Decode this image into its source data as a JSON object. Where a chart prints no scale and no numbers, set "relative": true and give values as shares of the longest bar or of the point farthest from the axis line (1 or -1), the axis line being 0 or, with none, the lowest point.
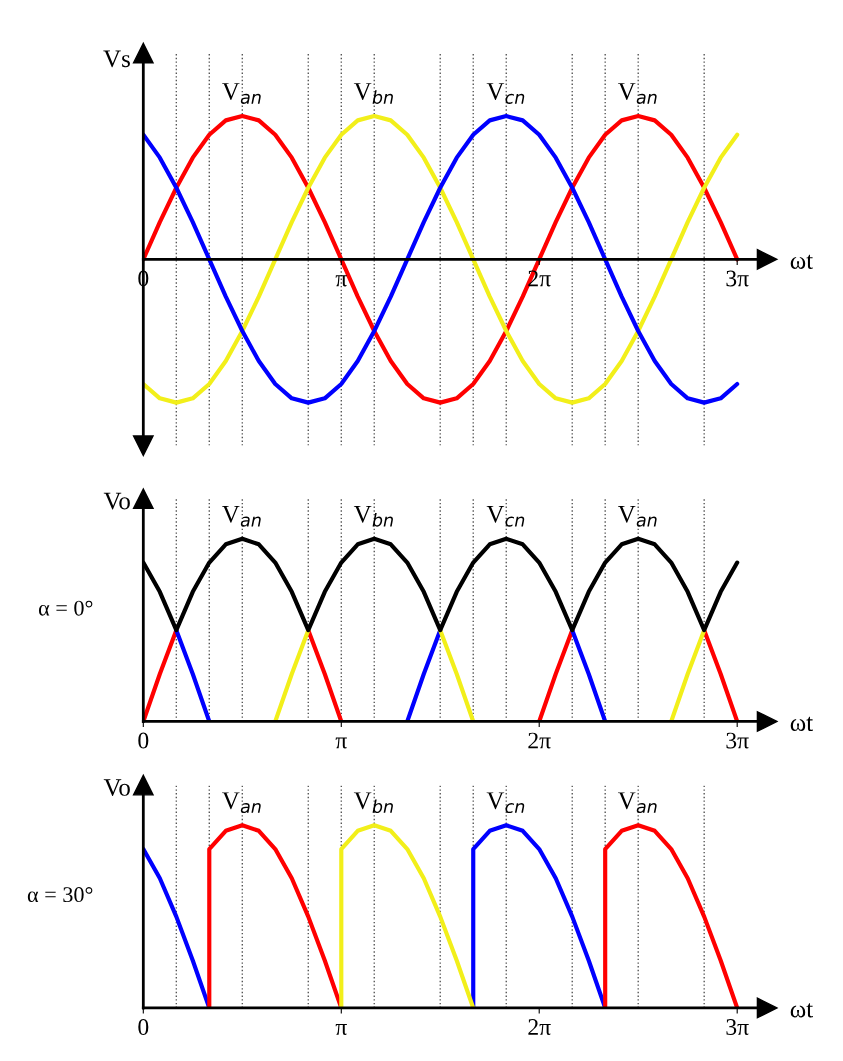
{
  "chart_data": [
    {
      "type": "line",
      "ylabel": "Vs",
      "xlabel": "ωt",
      "relative": true,
      "tick_labels": "x",
      "x": [
        0,
        0.262,
        0.524,
        0.785,
        1.047,
        1.309,
        1.571,
        1.833,
        2.094,
        2.356,
        2.618,
        2.88,
        3.142,
        3.403,
        3.665,
        3.927,
        4.189,
        4.451,
        4.712,
        4.974,
        5.236,
        5.498,
        5.76,
        6.021,
        6.283,
        6.545,
        6.807,
        7.069,
        7.33,
        7.592,
        7.854,
        8.116,
        8.378,
        8.639,
        8.901,
        9.163,
        9.425
      ],
      "series": [
        {
          "color": "#ff0000",
          "values": [
            0,
            0.26,
            0.5,
            0.71,
            0.87,
            0.97,
            1,
            0.97,
            0.87,
            0.71,
            0.5,
            0.26,
            0,
            -0.26,
            -0.5,
            -0.71,
            -0.87,
            -0.97,
            -1,
            -0.97,
            -0.87,
            -0.71,
            -0.5,
            -0.26,
            0,
            0.26,
            0.5,
            0.71,
            0.87,
            0.97,
            1,
            0.97,
            0.87,
            0.71,
            0.5,
            0.26,
            0
          ]
        },
        {
          "color": "#f2ef1a",
          "values": [
            -0.87,
            -0.97,
            -1,
            -0.97,
            -0.87,
            -0.71,
            -0.5,
            -0.26,
            0,
            0.26,
            0.5,
            0.71,
            0.87,
            0.97,
            1,
            0.97,
            0.87,
            0.71,
            0.5,
            0.26,
            0,
            -0.26,
            -0.5,
            -0.71,
            -0.87,
            -0.97,
            -1,
            -0.97,
            -0.87,
            -0.71,
            -0.5,
            -0.26,
            0,
            0.26,
            0.5,
            0.71,
            0.87
          ]
        },
        {
          "color": "#0000ff",
          "values": [
            0.87,
            0.71,
            0.5,
            0.26,
            0,
            -0.26,
            -0.5,
            -0.71,
            -0.87,
            -0.97,
            -1,
            -0.97,
            -0.87,
            -0.71,
            -0.5,
            -0.26,
            0,
            0.26,
            0.5,
            0.71,
            0.87,
            0.97,
            1,
            0.97,
            0.87,
            0.71,
            0.5,
            0.26,
            0,
            -0.26,
            -0.5,
            -0.71,
            -0.87,
            -0.97,
            -1,
            -0.97,
            -0.87
          ]
        }
      ],
      "xlim": [
        0,
        9.9
      ],
      "xticks": [
        {
          "value": 0,
          "label": "0"
        },
        {
          "value": 3.142,
          "label": "π"
        },
        {
          "value": 6.283,
          "label": "2π"
        },
        {
          "value": 9.425,
          "label": "3π"
        }
      ],
      "ref_lines": [
        {
          "axis": "x",
          "value": 0.524,
          "color": "#555555",
          "line_style": "dotted"
        },
        {
          "axis": "x",
          "value": 1.047,
          "color": "#555555",
          "line_style": "dotted"
        },
        {
          "axis": "x",
          "value": 1.571,
          "color": "#555555",
          "line_style": "dotted"
        },
        {
          "axis": "x",
          "value": 2.618,
          "color": "#555555",
          "line_style": "dotted"
        },
        {
          "axis": "x",
          "value": 3.142,
          "color": "#555555",
          "line_style": "dotted"
        },
        {
          "axis": "x",
          "value": 3.665,
          "color": "#555555",
          "line_style": "dotted"
        },
        {
          "axis": "x",
          "value": 4.712,
          "color": "#555555",
          "line_style": "dotted"
        },
        {
          "axis": "x",
          "value": 5.236,
          "color": "#555555",
          "line_style": "dotted"
        },
        {
          "axis": "x",
          "value": 5.76,
          "color": "#555555",
          "line_style": "dotted"
        },
        {
          "axis": "x",
          "value": 6.807,
          "color": "#555555",
          "line_style": "dotted"
        },
        {
          "axis": "x",
          "value": 7.33,
          "color": "#555555",
          "line_style": "dotted"
        },
        {
          "axis": "x",
          "value": 7.854,
          "color": "#555555",
          "line_style": "dotted"
        },
        {
          "axis": "x",
          "value": 8.901,
          "color": "#555555",
          "line_style": "dotted"
        }
      ],
      "annotations": [
        {
          "text": "V$_{an}$",
          "x": 1.571,
          "y": 1
        },
        {
          "text": "V$_{bn}$",
          "x": 3.665,
          "y": 1
        },
        {
          "text": "V$_{cn}$",
          "x": 5.76,
          "y": 1
        },
        {
          "text": "V$_{an}$",
          "x": 7.854,
          "y": 1
        }
      ]
    },
    {
      "type": "line",
      "ylabel": "Vo",
      "xlabel": "ωt",
      "relative": true,
      "tick_labels": "x",
      "x": [
        0,
        0.262,
        0.524,
        0.785,
        1.047,
        1.309,
        1.571,
        1.833,
        2.094,
        2.356,
        2.618,
        2.88,
        3.142,
        3.403,
        3.665,
        3.927,
        4.189,
        4.451,
        4.712,
        4.974,
        5.236,
        5.498,
        5.76,
        6.021,
        6.283,
        6.545,
        6.807,
        7.069,
        7.33,
        7.592,
        7.854,
        8.116,
        8.378,
        8.639,
        8.901,
        9.163,
        9.425
      ],
      "series": [
        {
          "color": "#ff0000",
          "values": [
            0,
            0.26,
            0.5,
            null,
            null,
            null,
            null,
            null,
            null,
            null,
            0.5,
            0.26,
            0,
            null,
            null,
            null,
            null,
            null,
            null,
            null,
            null,
            null,
            null,
            null,
            0,
            0.26,
            0.5,
            null,
            null,
            null,
            null,
            null,
            null,
            null,
            0.5,
            0.26,
            0
          ]
        },
        {
          "color": "#0000ff",
          "values": [
            null,
            null,
            0.5,
            0.26,
            0,
            null,
            null,
            null,
            null,
            null,
            null,
            null,
            null,
            null,
            null,
            null,
            0,
            0.26,
            0.5,
            null,
            null,
            null,
            null,
            null,
            null,
            null,
            0.5,
            0.26,
            0,
            null,
            null,
            null,
            null,
            null,
            null,
            null,
            null
          ]
        },
        {
          "color": "#f2ef1a",
          "values": [
            null,
            null,
            null,
            null,
            null,
            null,
            null,
            null,
            0,
            0.26,
            0.5,
            null,
            null,
            null,
            null,
            null,
            null,
            null,
            0.5,
            0.26,
            0,
            null,
            null,
            null,
            null,
            null,
            null,
            null,
            null,
            null,
            null,
            null,
            0,
            0.26,
            0.5,
            null,
            null
          ]
        },
        {
          "color": "#000000",
          "values": [
            0.87,
            0.71,
            0.5,
            0.71,
            0.87,
            0.97,
            1,
            0.97,
            0.87,
            0.71,
            0.5,
            0.71,
            0.87,
            0.97,
            1,
            0.97,
            0.87,
            0.71,
            0.5,
            0.71,
            0.87,
            0.97,
            1,
            0.97,
            0.87,
            0.71,
            0.5,
            0.71,
            0.87,
            0.97,
            1,
            0.97,
            0.87,
            0.71,
            0.5,
            0.71,
            0.87
          ]
        }
      ],
      "xlim": [
        0,
        9.9
      ],
      "xticks": [
        {
          "value": 0,
          "label": "0"
        },
        {
          "value": 3.142,
          "label": "π"
        },
        {
          "value": 6.283,
          "label": "2π"
        },
        {
          "value": 9.425,
          "label": "3π"
        }
      ],
      "ref_lines": [
        {
          "axis": "x",
          "value": 0.524,
          "color": "#555555",
          "line_style": "dotted"
        },
        {
          "axis": "x",
          "value": 1.047,
          "color": "#555555",
          "line_style": "dotted"
        },
        {
          "axis": "x",
          "value": 1.571,
          "color": "#555555",
          "line_style": "dotted"
        },
        {
          "axis": "x",
          "value": 2.618,
          "color": "#555555",
          "line_style": "dotted"
        },
        {
          "axis": "x",
          "value": 3.142,
          "color": "#555555",
          "line_style": "dotted"
        },
        {
          "axis": "x",
          "value": 3.665,
          "color": "#555555",
          "line_style": "dotted"
        },
        {
          "axis": "x",
          "value": 4.712,
          "color": "#555555",
          "line_style": "dotted"
        },
        {
          "axis": "x",
          "value": 5.236,
          "color": "#555555",
          "line_style": "dotted"
        },
        {
          "axis": "x",
          "value": 5.76,
          "color": "#555555",
          "line_style": "dotted"
        },
        {
          "axis": "x",
          "value": 6.807,
          "color": "#555555",
          "line_style": "dotted"
        },
        {
          "axis": "x",
          "value": 7.33,
          "color": "#555555",
          "line_style": "dotted"
        },
        {
          "axis": "x",
          "value": 7.854,
          "color": "#555555",
          "line_style": "dotted"
        },
        {
          "axis": "x",
          "value": 8.901,
          "color": "#555555",
          "line_style": "dotted"
        }
      ],
      "annotations": [
        {
          "text": "V$_{an}$",
          "x": 1.571,
          "y": 1
        },
        {
          "text": "V$_{bn}$",
          "x": 3.665,
          "y": 1
        },
        {
          "text": "V$_{cn}$",
          "x": 5.76,
          "y": 1
        },
        {
          "text": "V$_{an}$",
          "x": 7.854,
          "y": 1
        },
        "α = 0°"
      ]
    },
    {
      "type": "line",
      "ylabel": "Vo",
      "xlabel": "ωt",
      "relative": true,
      "tick_labels": "x",
      "series": [
        {
          "color": "#0000ff",
          "x": [
            0,
            0.262,
            0.524,
            0.785,
            1.047,
            null,
            5.236,
            5.236,
            5.498,
            5.76,
            6.021,
            6.283,
            6.545,
            6.807,
            7.069,
            7.33
          ],
          "values": [
            0.87,
            0.71,
            0.5,
            0.26,
            0,
            null,
            0,
            0.87,
            0.97,
            1,
            0.97,
            0.87,
            0.71,
            0.5,
            0.26,
            0
          ]
        },
        {
          "color": "#ff0000",
          "x": [
            1.047,
            1.047,
            1.309,
            1.571,
            1.833,
            2.094,
            2.356,
            2.618,
            2.88,
            3.142,
            null,
            7.33,
            7.33,
            7.592,
            7.854,
            8.116,
            8.378,
            8.639,
            8.901,
            9.163,
            9.425
          ],
          "values": [
            0,
            0.87,
            0.97,
            1,
            0.97,
            0.87,
            0.71,
            0.5,
            0.26,
            0,
            null,
            0,
            0.87,
            0.97,
            1,
            0.97,
            0.87,
            0.71,
            0.5,
            0.26,
            0
          ]
        },
        {
          "color": "#f2ef1a",
          "x": [
            3.142,
            3.142,
            3.403,
            3.665,
            3.927,
            4.189,
            4.451,
            4.712,
            4.974,
            5.236
          ],
          "values": [
            0,
            0.87,
            0.97,
            1,
            0.97,
            0.87,
            0.71,
            0.5,
            0.26,
            0
          ]
        }
      ],
      "xlim": [
        0,
        9.9
      ],
      "xticks": [
        {
          "value": 0,
          "label": "0"
        },
        {
          "value": 3.142,
          "label": "π"
        },
        {
          "value": 6.283,
          "label": "2π"
        },
        {
          "value": 9.425,
          "label": "3π"
        }
      ],
      "ref_lines": [
        {
          "axis": "x",
          "value": 0.524,
          "color": "#555555",
          "line_style": "dotted"
        },
        {
          "axis": "x",
          "value": 1.047,
          "color": "#555555",
          "line_style": "dotted"
        },
        {
          "axis": "x",
          "value": 1.571,
          "color": "#555555",
          "line_style": "dotted"
        },
        {
          "axis": "x",
          "value": 2.618,
          "color": "#555555",
          "line_style": "dotted"
        },
        {
          "axis": "x",
          "value": 3.142,
          "color": "#555555",
          "line_style": "dotted"
        },
        {
          "axis": "x",
          "value": 3.665,
          "color": "#555555",
          "line_style": "dotted"
        },
        {
          "axis": "x",
          "value": 4.712,
          "color": "#555555",
          "line_style": "dotted"
        },
        {
          "axis": "x",
          "value": 5.236,
          "color": "#555555",
          "line_style": "dotted"
        },
        {
          "axis": "x",
          "value": 5.76,
          "color": "#555555",
          "line_style": "dotted"
        },
        {
          "axis": "x",
          "value": 6.807,
          "color": "#555555",
          "line_style": "dotted"
        },
        {
          "axis": "x",
          "value": 7.33,
          "color": "#555555",
          "line_style": "dotted"
        },
        {
          "axis": "x",
          "value": 7.854,
          "color": "#555555",
          "line_style": "dotted"
        },
        {
          "axis": "x",
          "value": 8.901,
          "color": "#555555",
          "line_style": "dotted"
        }
      ],
      "annotations": [
        {
          "text": "V$_{an}$",
          "x": 1.571,
          "y": 1
        },
        {
          "text": "V$_{bn}$",
          "x": 3.665,
          "y": 1
        },
        {
          "text": "V$_{cn}$",
          "x": 5.76,
          "y": 1
        },
        {
          "text": "V$_{an}$",
          "x": 7.854,
          "y": 1
        },
        "α = 30°"
      ]
    }
  ]
}
